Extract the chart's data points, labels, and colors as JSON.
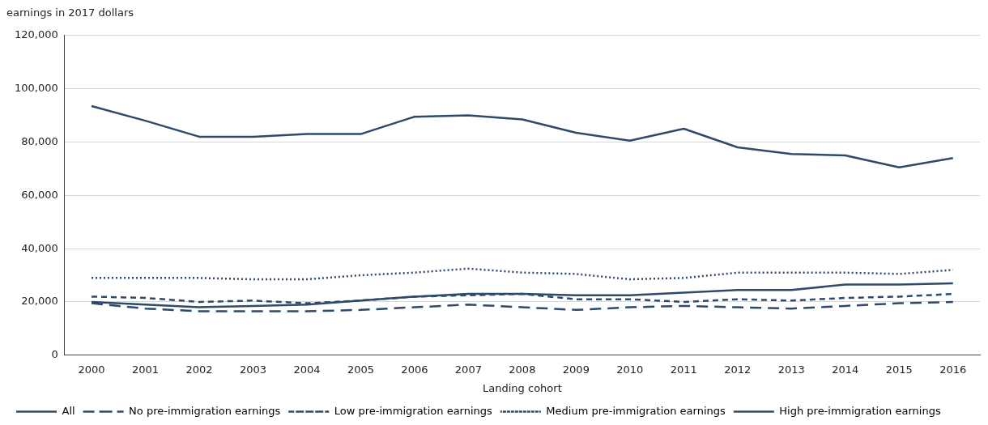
{
  "chart_data": {
    "type": "line",
    "ylabel": "earnings in 2017 dollars",
    "xlabel": "Landing cohort",
    "categories": [
      "2000",
      "2001",
      "2002",
      "2003",
      "2004",
      "2005",
      "2006",
      "2007",
      "2008",
      "2009",
      "2010",
      "2011",
      "2012",
      "2013",
      "2014",
      "2015",
      "2016"
    ],
    "ylim": [
      0,
      120000
    ],
    "yticks": [
      {
        "value": 0,
        "label": "0"
      },
      {
        "value": 20000,
        "label": "20,000"
      },
      {
        "value": 40000,
        "label": "40,000"
      },
      {
        "value": 60000,
        "label": "60,000"
      },
      {
        "value": 80000,
        "label": "80,000"
      },
      {
        "value": 100000,
        "label": "100,000"
      },
      {
        "value": 120000,
        "label": "120,000"
      }
    ],
    "grid": "y",
    "legend": "bottom",
    "marker": "none",
    "series": [
      {
        "name": "All",
        "color": "#2e4a6b",
        "line_style": "solid",
        "values": [
          20000,
          19000,
          18000,
          18500,
          19000,
          20500,
          22000,
          23000,
          23000,
          22500,
          22500,
          23500,
          24500,
          24500,
          26500,
          26500,
          27000
        ]
      },
      {
        "name": "No pre-immigration earnings",
        "color": "#2e4a6b",
        "line_style": "dashed",
        "values": [
          19500,
          17500,
          16500,
          16500,
          16500,
          17000,
          18000,
          19000,
          18000,
          17000,
          18000,
          18500,
          18000,
          17500,
          18500,
          19500,
          20000
        ]
      },
      {
        "name": "Low pre-immigration earnings",
        "color": "#2e4a6b",
        "line_style": "short_dashed",
        "values": [
          22000,
          21500,
          20000,
          20500,
          19500,
          20500,
          22000,
          22500,
          23000,
          21000,
          21000,
          20000,
          21000,
          20500,
          21500,
          22000,
          23000
        ]
      },
      {
        "name": "Medium pre-immigration earnings",
        "color": "#2e4a6b",
        "line_style": "dotted",
        "values": [
          29000,
          29000,
          29000,
          28500,
          28500,
          30000,
          31000,
          32500,
          31000,
          30500,
          28500,
          29000,
          31000,
          31000,
          31000,
          30500,
          32000
        ]
      },
      {
        "name": "High pre-immigration earnings",
        "color": "#2e4a6b",
        "line_style": "solid",
        "values": [
          93500,
          88000,
          82000,
          82000,
          83000,
          83000,
          89500,
          90000,
          88500,
          83500,
          80500,
          85000,
          78000,
          75500,
          75000,
          70500,
          74000
        ]
      }
    ]
  }
}
